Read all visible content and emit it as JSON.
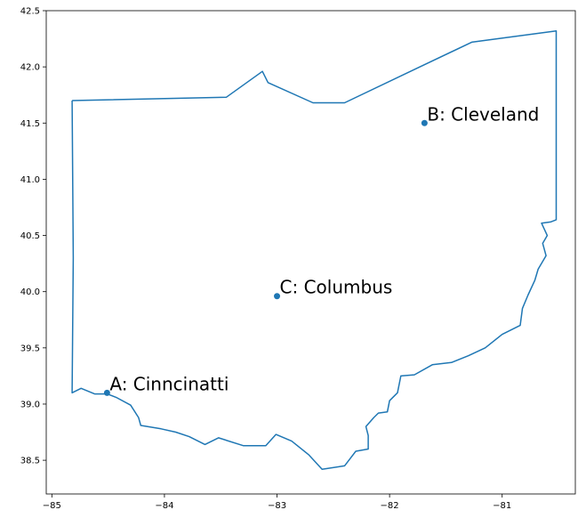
{
  "chart_data": {
    "type": "scatter",
    "title": "",
    "xlabel": "",
    "ylabel": "",
    "xlim": [
      -85.05,
      -80.35
    ],
    "ylim": [
      38.2,
      42.5
    ],
    "x_ticks": [
      {
        "value": -85,
        "label": "−85"
      },
      {
        "value": -84,
        "label": "−84"
      },
      {
        "value": -83,
        "label": "−83"
      },
      {
        "value": -82,
        "label": "−82"
      },
      {
        "value": -81,
        "label": "−81"
      }
    ],
    "y_ticks": [
      {
        "value": 38.5,
        "label": "38.5"
      },
      {
        "value": 39.0,
        "label": "39.0"
      },
      {
        "value": 39.5,
        "label": "39.5"
      },
      {
        "value": 40.0,
        "label": "40.0"
      },
      {
        "value": 40.5,
        "label": "40.5"
      },
      {
        "value": 41.0,
        "label": "41.0"
      },
      {
        "value": 41.5,
        "label": "41.5"
      },
      {
        "value": 42.0,
        "label": "42.0"
      },
      {
        "value": 42.5,
        "label": "42.5"
      }
    ],
    "points": [
      {
        "label": "A: Cinncinatti",
        "x": -84.51,
        "y": 39.1
      },
      {
        "label": "B: Cleveland",
        "x": -81.69,
        "y": 41.5
      },
      {
        "label": "C: Columbus",
        "x": -83.0,
        "y": 39.96
      }
    ],
    "boundary": [
      [
        -84.82,
        41.7
      ],
      [
        -83.45,
        41.73
      ],
      [
        -83.13,
        41.96
      ],
      [
        -83.08,
        41.86
      ],
      [
        -82.68,
        41.68
      ],
      [
        -82.4,
        41.68
      ],
      [
        -81.73,
        42.0
      ],
      [
        -81.27,
        42.22
      ],
      [
        -80.52,
        42.32
      ],
      [
        -80.52,
        40.64
      ],
      [
        -80.57,
        40.62
      ],
      [
        -80.65,
        40.61
      ],
      [
        -80.6,
        40.5
      ],
      [
        -80.64,
        40.43
      ],
      [
        -80.61,
        40.32
      ],
      [
        -80.68,
        40.2
      ],
      [
        -80.71,
        40.1
      ],
      [
        -80.77,
        39.97
      ],
      [
        -80.82,
        39.85
      ],
      [
        -80.84,
        39.7
      ],
      [
        -81.0,
        39.62
      ],
      [
        -81.15,
        39.5
      ],
      [
        -81.3,
        39.43
      ],
      [
        -81.45,
        39.37
      ],
      [
        -81.62,
        39.35
      ],
      [
        -81.78,
        39.26
      ],
      [
        -81.9,
        39.25
      ],
      [
        -81.93,
        39.1
      ],
      [
        -82.0,
        39.03
      ],
      [
        -82.02,
        38.93
      ],
      [
        -82.1,
        38.92
      ],
      [
        -82.14,
        38.88
      ],
      [
        -82.21,
        38.8
      ],
      [
        -82.19,
        38.72
      ],
      [
        -82.19,
        38.6
      ],
      [
        -82.3,
        38.58
      ],
      [
        -82.4,
        38.45
      ],
      [
        -82.6,
        38.42
      ],
      [
        -82.72,
        38.55
      ],
      [
        -82.87,
        38.67
      ],
      [
        -83.01,
        38.73
      ],
      [
        -83.1,
        38.63
      ],
      [
        -83.3,
        38.63
      ],
      [
        -83.52,
        38.7
      ],
      [
        -83.64,
        38.64
      ],
      [
        -83.78,
        38.71
      ],
      [
        -83.9,
        38.75
      ],
      [
        -84.03,
        38.78
      ],
      [
        -84.21,
        38.81
      ],
      [
        -84.23,
        38.88
      ],
      [
        -84.3,
        38.99
      ],
      [
        -84.43,
        39.06
      ],
      [
        -84.51,
        39.09
      ],
      [
        -84.62,
        39.09
      ],
      [
        -84.74,
        39.14
      ],
      [
        -84.82,
        39.1
      ],
      [
        -84.81,
        40.3
      ],
      [
        -84.82,
        41.7
      ]
    ],
    "grid": false,
    "colors": {
      "line": "#1f77b4",
      "marker": "#1f77b4",
      "axes": "#000000"
    }
  }
}
